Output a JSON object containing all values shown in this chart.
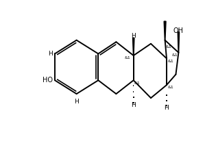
{
  "bg_color": "#ffffff",
  "line_color": "#000000",
  "line_width": 1.4,
  "font_size": 6.5,
  "figsize": [
    2.99,
    2.38
  ],
  "dpi": 100,
  "xlim": [
    -0.5,
    9.5
  ],
  "ylim": [
    -0.5,
    8.5
  ]
}
